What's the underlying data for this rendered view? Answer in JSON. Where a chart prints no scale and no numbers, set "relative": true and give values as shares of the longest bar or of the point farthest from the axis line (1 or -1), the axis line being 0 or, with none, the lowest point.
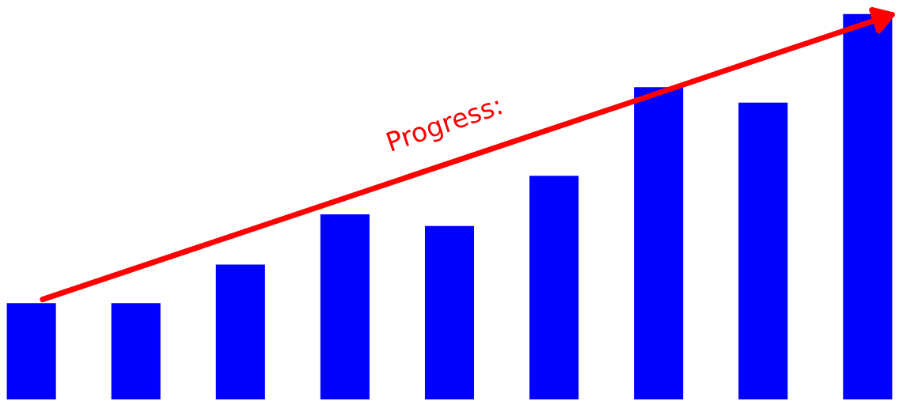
{
  "chart_data": {
    "type": "bar",
    "relative": true,
    "categories": [
      null,
      null,
      null,
      null,
      null,
      null,
      null,
      null,
      null
    ],
    "values": [
      0.25,
      0.25,
      0.35,
      0.48,
      0.45,
      0.58,
      0.81,
      0.77,
      1.0
    ],
    "color": "#0000ff",
    "annotations": [
      "Progress:"
    ]
  }
}
